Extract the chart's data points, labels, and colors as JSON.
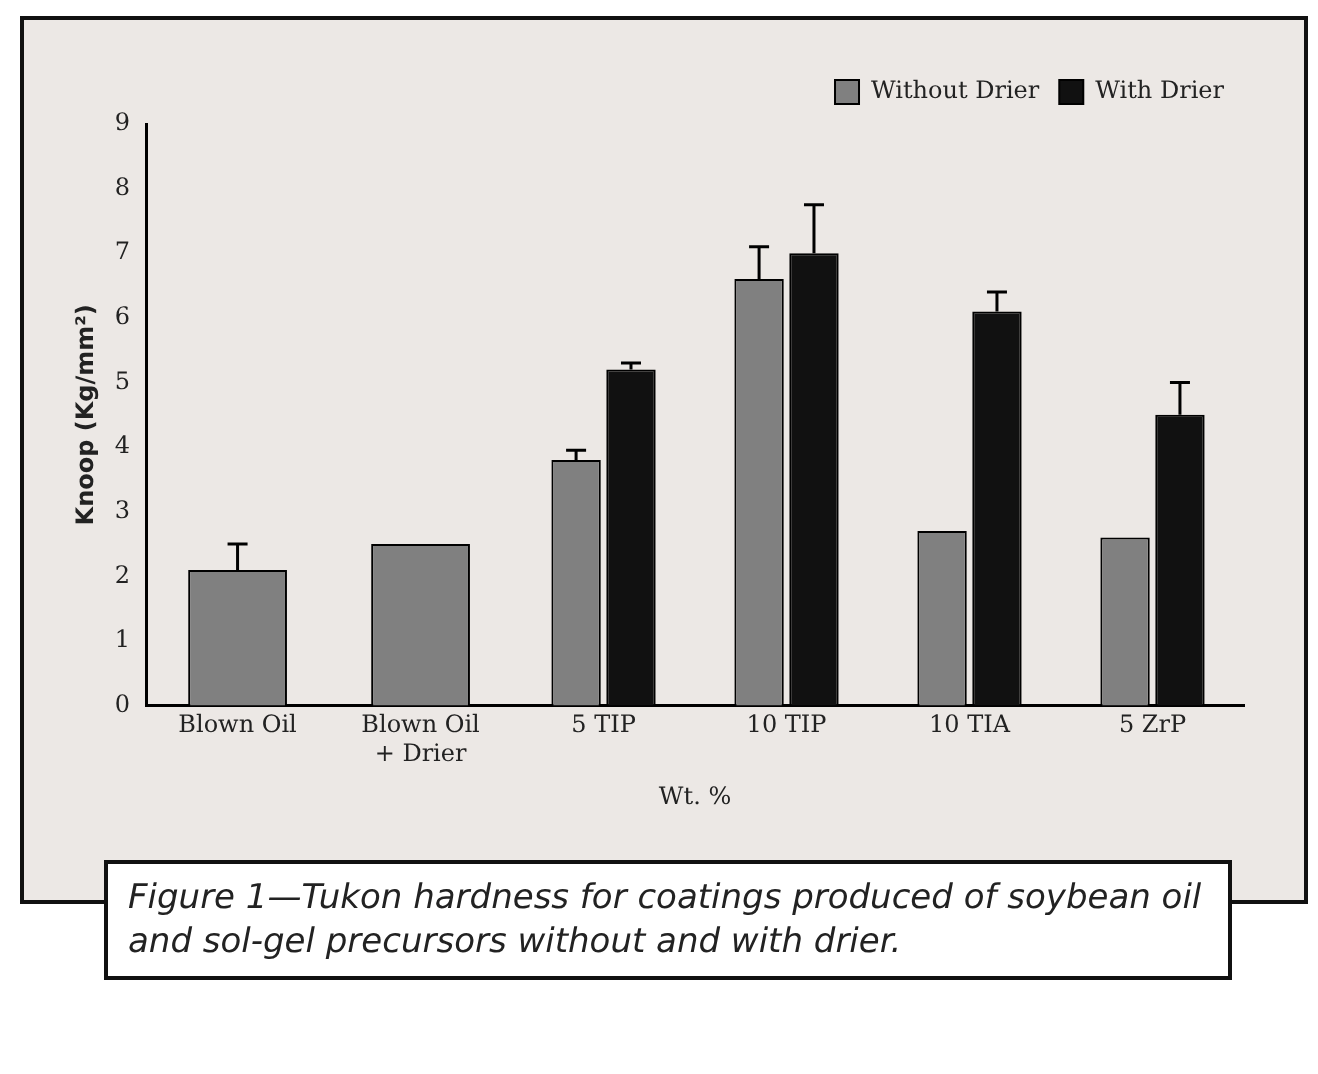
{
  "chart_data": {
    "type": "bar",
    "ylabel": "Knoop (Kg/mm²)",
    "xlabel": "Wt. %",
    "categories": [
      "Blown Oil",
      "Blown Oil\n+ Drier",
      "5 TIP",
      "10 TIP",
      "10 TIA",
      "5 ZrP"
    ],
    "series": [
      {
        "name": "Without Drier",
        "color": "#808080",
        "values": [
          2.1,
          2.5,
          3.8,
          6.6,
          2.7,
          2.6
        ],
        "errors": [
          [
            2.1,
            2.5
          ],
          null,
          [
            3.8,
            3.95
          ],
          [
            6.6,
            7.1
          ],
          null,
          null
        ]
      },
      {
        "name": "With Drier",
        "color": "#111111",
        "values": [
          null,
          null,
          5.2,
          7.0,
          6.1,
          4.5
        ],
        "errors": [
          null,
          null,
          [
            5.2,
            5.3
          ],
          [
            7.0,
            7.75
          ],
          [
            6.1,
            6.4
          ],
          [
            4.5,
            5.0
          ]
        ]
      }
    ],
    "ylim": [
      0,
      9
    ],
    "yticks": [
      0,
      1,
      2,
      3,
      4,
      5,
      6,
      7,
      8,
      9
    ],
    "grid": false,
    "legend": "top right",
    "annotations": [
      "Figure 1—Tukon hardness for coatings produced of soybean oil and sol-gel precursors without and with drier."
    ]
  }
}
